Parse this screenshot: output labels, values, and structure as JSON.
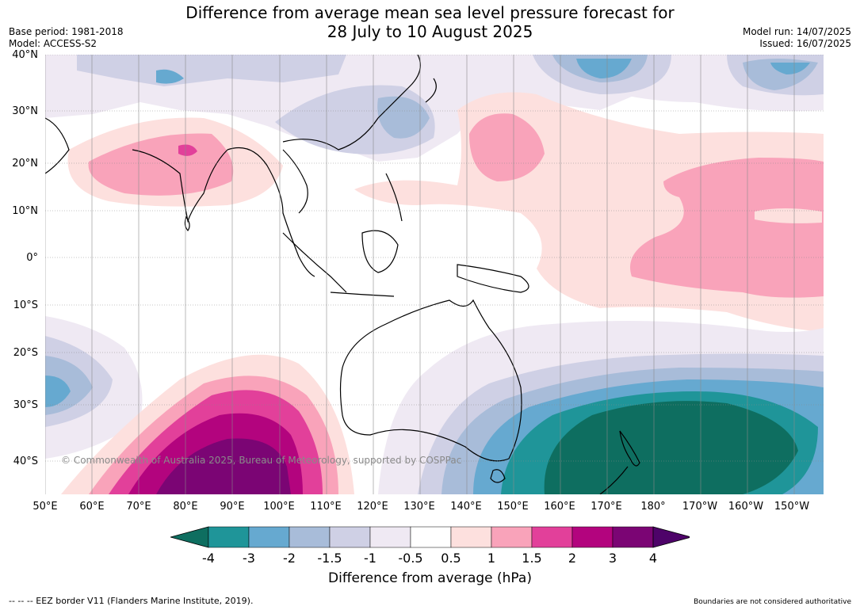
{
  "title": {
    "line1": "Difference from average mean sea level pressure forecast for",
    "line2": "28 July to 10 August 2025"
  },
  "meta": {
    "base_period": "Base period: 1981-2018",
    "model": "Model: ACCESS-S2",
    "model_run": "Model run: 14/07/2025",
    "issued": "Issued: 16/07/2025"
  },
  "axes": {
    "lat_labels": [
      "40°N",
      "30°N",
      "20°N",
      "10°N",
      "0°",
      "10°S",
      "20°S",
      "30°S",
      "40°S"
    ],
    "lon_labels": [
      "50°E",
      "60°E",
      "70°E",
      "80°E",
      "90°E",
      "100°E",
      "110°E",
      "120°E",
      "130°E",
      "140°E",
      "150°E",
      "160°E",
      "170°E",
      "180°",
      "170°W",
      "160°W",
      "150°W"
    ]
  },
  "colorbar": {
    "title": "Difference from average (hPa)",
    "ticks": [
      "-4",
      "-3",
      "-2",
      "-1.5",
      "-1",
      "-0.5",
      "0.5",
      "1",
      "1.5",
      "2",
      "3",
      "4"
    ],
    "colors": [
      "#0e6e60",
      "#1f9599",
      "#66a9d0",
      "#a8bcd9",
      "#cfd0e5",
      "#efe9f3",
      "#ffffff",
      "#fde0de",
      "#f9a3ba",
      "#e2409a",
      "#b3047e",
      "#7b0574",
      "#4e0369"
    ]
  },
  "copyright": "© Commonwealth of Australia 2025, Bureau of Meteorology, supported by COSPPac",
  "footer": {
    "eez": "--  --  -- EEZ border V11 (Flanders Marine Institute, 2019).",
    "boundaries": "Boundaries are not considered authoritative"
  }
}
